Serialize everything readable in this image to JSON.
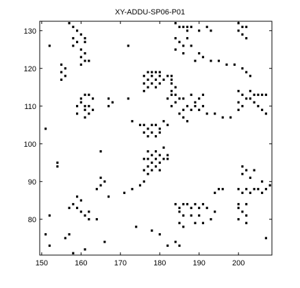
{
  "chart_data": {
    "type": "scatter",
    "title": "XY-ADDU-SP06-P01",
    "xlabel": "",
    "ylabel": "",
    "xlim": [
      149.5,
      208.5
    ],
    "ylim": [
      70.5,
      132.5
    ],
    "x_ticks": [
      150,
      160,
      170,
      180,
      190,
      200
    ],
    "y_ticks": [
      80,
      90,
      100,
      110,
      120,
      130
    ],
    "grid": false,
    "legend": "none",
    "marker_color": "#000000",
    "points": [
      [
        157,
        132
      ],
      [
        158,
        131
      ],
      [
        159,
        130
      ],
      [
        160,
        129
      ],
      [
        161,
        128
      ],
      [
        158,
        128
      ],
      [
        159,
        127
      ],
      [
        161,
        127
      ],
      [
        158,
        126
      ],
      [
        160,
        125
      ],
      [
        161,
        124
      ],
      [
        160,
        123
      ],
      [
        162,
        122
      ],
      [
        161,
        122
      ],
      [
        160,
        121
      ],
      [
        152,
        126
      ],
      [
        172,
        126
      ],
      [
        184,
        132
      ],
      [
        185,
        131
      ],
      [
        186,
        131
      ],
      [
        187,
        131
      ],
      [
        188,
        131
      ],
      [
        187,
        130
      ],
      [
        190,
        130
      ],
      [
        192,
        131
      ],
      [
        193,
        130
      ],
      [
        184,
        128
      ],
      [
        185,
        127
      ],
      [
        187,
        128
      ],
      [
        188,
        126
      ],
      [
        186,
        126
      ],
      [
        184,
        125
      ],
      [
        186,
        124
      ],
      [
        190,
        124
      ],
      [
        191,
        123
      ],
      [
        189,
        122
      ],
      [
        193,
        122
      ],
      [
        195,
        122
      ],
      [
        197,
        121
      ],
      [
        199,
        121
      ],
      [
        201,
        120
      ],
      [
        202,
        119
      ],
      [
        203,
        118
      ],
      [
        200,
        132
      ],
      [
        201,
        131
      ],
      [
        202,
        131
      ],
      [
        200,
        130
      ],
      [
        201,
        129
      ],
      [
        202,
        128
      ],
      [
        155,
        121
      ],
      [
        156,
        120
      ],
      [
        155,
        119
      ],
      [
        156,
        118
      ],
      [
        155,
        117
      ],
      [
        177,
        119
      ],
      [
        178,
        119
      ],
      [
        179,
        119
      ],
      [
        180,
        119
      ],
      [
        176,
        118
      ],
      [
        178,
        118
      ],
      [
        180,
        118
      ],
      [
        182,
        118
      ],
      [
        177,
        117
      ],
      [
        179,
        117
      ],
      [
        181,
        117
      ],
      [
        176,
        116
      ],
      [
        178,
        116
      ],
      [
        180,
        116
      ],
      [
        177,
        115
      ],
      [
        179,
        115
      ],
      [
        176,
        114
      ],
      [
        183,
        118
      ],
      [
        183,
        117
      ],
      [
        183,
        116
      ],
      [
        184,
        115
      ],
      [
        183,
        114
      ],
      [
        184,
        113
      ],
      [
        182,
        112
      ],
      [
        184,
        111
      ],
      [
        161,
        113
      ],
      [
        162,
        113
      ],
      [
        160,
        112
      ],
      [
        163,
        112
      ],
      [
        160,
        111
      ],
      [
        161,
        110
      ],
      [
        162,
        110
      ],
      [
        159,
        110
      ],
      [
        161,
        109
      ],
      [
        163,
        109
      ],
      [
        159,
        108
      ],
      [
        162,
        108
      ],
      [
        161,
        107
      ],
      [
        167,
        112
      ],
      [
        168,
        111
      ],
      [
        167,
        110
      ],
      [
        172,
        112
      ],
      [
        183,
        113
      ],
      [
        185,
        112
      ],
      [
        186,
        112
      ],
      [
        188,
        113
      ],
      [
        190,
        112
      ],
      [
        191,
        113
      ],
      [
        189,
        111
      ],
      [
        187,
        110
      ],
      [
        189,
        110
      ],
      [
        191,
        110
      ],
      [
        186,
        109
      ],
      [
        188,
        109
      ],
      [
        190,
        109
      ],
      [
        192,
        108
      ],
      [
        194,
        108
      ],
      [
        196,
        107
      ],
      [
        198,
        107
      ],
      [
        185,
        108
      ],
      [
        183,
        110
      ],
      [
        186,
        107
      ],
      [
        187,
        106
      ],
      [
        200,
        114
      ],
      [
        201,
        113
      ],
      [
        202,
        112
      ],
      [
        200,
        111
      ],
      [
        201,
        110
      ],
      [
        200,
        109
      ],
      [
        203,
        114
      ],
      [
        204,
        113
      ],
      [
        205,
        113
      ],
      [
        206,
        113
      ],
      [
        207,
        113
      ],
      [
        203,
        112
      ],
      [
        204,
        111
      ],
      [
        205,
        110
      ],
      [
        206,
        109
      ],
      [
        207,
        108
      ],
      [
        175,
        105
      ],
      [
        176,
        105
      ],
      [
        177,
        104
      ],
      [
        178,
        105
      ],
      [
        179,
        105
      ],
      [
        180,
        104
      ],
      [
        181,
        106
      ],
      [
        182,
        105
      ],
      [
        176,
        103
      ],
      [
        178,
        103
      ],
      [
        180,
        103
      ],
      [
        177,
        102
      ],
      [
        179,
        102
      ],
      [
        173,
        106
      ],
      [
        151,
        104
      ],
      [
        181,
        99
      ],
      [
        179,
        98
      ],
      [
        177,
        98
      ],
      [
        178,
        97
      ],
      [
        180,
        97
      ],
      [
        182,
        97
      ],
      [
        176,
        96
      ],
      [
        177,
        96
      ],
      [
        179,
        96
      ],
      [
        181,
        96
      ],
      [
        182,
        96
      ],
      [
        178,
        95
      ],
      [
        180,
        95
      ],
      [
        177,
        94
      ],
      [
        179,
        94
      ],
      [
        176,
        93
      ],
      [
        178,
        93
      ],
      [
        180,
        93
      ],
      [
        177,
        92
      ],
      [
        165,
        98
      ],
      [
        154,
        95
      ],
      [
        154,
        94
      ],
      [
        201,
        94
      ],
      [
        202,
        93
      ],
      [
        201,
        92
      ],
      [
        204,
        93
      ],
      [
        203,
        91
      ],
      [
        206,
        90
      ],
      [
        165,
        91
      ],
      [
        166,
        90
      ],
      [
        165,
        89
      ],
      [
        164,
        88
      ],
      [
        167,
        86
      ],
      [
        171,
        87
      ],
      [
        173,
        88
      ],
      [
        175,
        89
      ],
      [
        176,
        90
      ],
      [
        159,
        86
      ],
      [
        160,
        85
      ],
      [
        158,
        84
      ],
      [
        159,
        83
      ],
      [
        160,
        82
      ],
      [
        162,
        82
      ],
      [
        161,
        81
      ],
      [
        162,
        80
      ],
      [
        157,
        83
      ],
      [
        164,
        80
      ],
      [
        152,
        81
      ],
      [
        184,
        84
      ],
      [
        185,
        83
      ],
      [
        186,
        84
      ],
      [
        187,
        84
      ],
      [
        189,
        84
      ],
      [
        191,
        84
      ],
      [
        188,
        83
      ],
      [
        190,
        83
      ],
      [
        192,
        83
      ],
      [
        194,
        82
      ],
      [
        185,
        82
      ],
      [
        186,
        81
      ],
      [
        188,
        81
      ],
      [
        190,
        81
      ],
      [
        193,
        80
      ],
      [
        189,
        79
      ],
      [
        191,
        79
      ],
      [
        186,
        78
      ],
      [
        185,
        79
      ],
      [
        195,
        88
      ],
      [
        196,
        88
      ],
      [
        194,
        87
      ],
      [
        200,
        88
      ],
      [
        201,
        87
      ],
      [
        202,
        88
      ],
      [
        203,
        87
      ],
      [
        204,
        88
      ],
      [
        205,
        88
      ],
      [
        206,
        87
      ],
      [
        207,
        88
      ],
      [
        208,
        89
      ],
      [
        200,
        84
      ],
      [
        202,
        84
      ],
      [
        200,
        83
      ],
      [
        201,
        82
      ],
      [
        202,
        81
      ],
      [
        200,
        80
      ],
      [
        202,
        79
      ],
      [
        174,
        78
      ],
      [
        178,
        77
      ],
      [
        180,
        76
      ],
      [
        166,
        74
      ],
      [
        151,
        76
      ],
      [
        157,
        76
      ],
      [
        156,
        75
      ],
      [
        161,
        72
      ],
      [
        158,
        71
      ],
      [
        184,
        74
      ],
      [
        185,
        73
      ],
      [
        182,
        73
      ],
      [
        207,
        75
      ],
      [
        152,
        73
      ]
    ]
  }
}
